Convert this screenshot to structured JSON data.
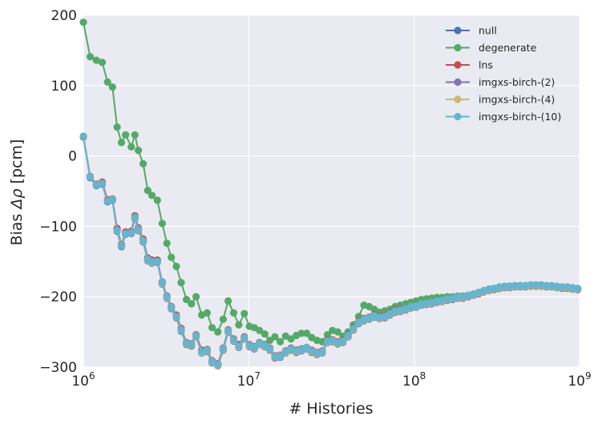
{
  "chart_data": {
    "type": "line",
    "xlabel": "# Histories",
    "ylabel_prefix": "Bias ",
    "ylabel_symbol": "Δρ",
    "ylabel_suffix": " [pcm]",
    "x_scale": "log",
    "xlim": [
      1000000,
      1000000000
    ],
    "ylim": [
      -300,
      200
    ],
    "grid": true,
    "legend_position": "top-right",
    "x_ticks": [
      {
        "value": 1000000,
        "base": "10",
        "exp": "6"
      },
      {
        "value": 10000000,
        "base": "10",
        "exp": "7"
      },
      {
        "value": 100000000,
        "base": "10",
        "exp": "8"
      },
      {
        "value": 1000000000,
        "base": "10",
        "exp": "9"
      }
    ],
    "y_ticks": [
      {
        "value": 200,
        "label": "200"
      },
      {
        "value": 100,
        "label": "100"
      },
      {
        "value": 0,
        "label": "0"
      },
      {
        "value": -100,
        "label": "−100"
      },
      {
        "value": -200,
        "label": "−200"
      },
      {
        "value": -300,
        "label": "−300"
      }
    ],
    "x": [
      1000000,
      1100000,
      1200000,
      1300000,
      1400000,
      1500000,
      1600000,
      1700000,
      1800000,
      1950000,
      2050000,
      2150000,
      2300000,
      2450000,
      2600000,
      2800000,
      3000000,
      3200000,
      3400000,
      3650000,
      3900000,
      4200000,
      4500000,
      4800000,
      5200000,
      5600000,
      6000000,
      6500000,
      7000000,
      7500000,
      8100000,
      8700000,
      9400000,
      10100000,
      10800000,
      11600000,
      12500000,
      13400000,
      14400000,
      15500000,
      16700000,
      18000000,
      19400000,
      20800000,
      22400000,
      24000000,
      25800000,
      27800000,
      29900000,
      32100000,
      34500000,
      37100000,
      39900000,
      42900000,
      46200000,
      49700000,
      53400000,
      57400000,
      61700000,
      66400000,
      71400000,
      76800000,
      82600000,
      88800000,
      95500000,
      102700000,
      110400000,
      118700000,
      127600000,
      137200000,
      147500000,
      158600000,
      170600000,
      183500000,
      197300000,
      212200000,
      228200000,
      245300000,
      263800000,
      283700000,
      305100000,
      328000000,
      352700000,
      379300000,
      407900000,
      438600000,
      471600000,
      507100000,
      545300000,
      586400000,
      630600000,
      678100000,
      729100000,
      784100000,
      843100000,
      906700000,
      975000000
    ],
    "series": [
      {
        "name": "null",
        "color": "#4c72b0",
        "values": [
          27,
          -31,
          -42,
          -40,
          -65,
          -63,
          -107,
          -129,
          -111,
          -110,
          -89,
          -106,
          -122,
          -149,
          -152,
          -151,
          -182,
          -202,
          -217,
          -230,
          -249,
          -268,
          -270,
          -257,
          -280,
          -278,
          -294,
          -298,
          -276,
          -250,
          -263,
          -272,
          -260,
          -271,
          -274,
          -268,
          -271,
          -276,
          -287,
          -286,
          -280,
          -276,
          -279,
          -277,
          -274,
          -279,
          -282,
          -280,
          -265,
          -264,
          -267,
          -265,
          -257,
          -247,
          -238,
          -234,
          -232,
          -229,
          -231,
          -230,
          -226,
          -222,
          -221,
          -219,
          -216,
          -215,
          -212,
          -211,
          -210,
          -208,
          -207,
          -205,
          -204,
          -202,
          -202,
          -200,
          -198,
          -196,
          -193,
          -191,
          -190,
          -188,
          -187,
          -187,
          -186,
          -186,
          -186,
          -185,
          -185,
          -185,
          -186,
          -186,
          -187,
          -188,
          -188,
          -189,
          -190
        ]
      },
      {
        "name": "degenerate",
        "color": "#55a868",
        "values": [
          190,
          141,
          136,
          133,
          105,
          98,
          41,
          19,
          30,
          13,
          30,
          8,
          -11,
          -49,
          -56,
          -63,
          -96,
          -124,
          -144,
          -157,
          -180,
          -204,
          -210,
          -200,
          -226,
          -223,
          -244,
          -250,
          -232,
          -206,
          -223,
          -240,
          -224,
          -242,
          -244,
          -248,
          -253,
          -262,
          -257,
          -264,
          -256,
          -260,
          -255,
          -252,
          -252,
          -258,
          -262,
          -264,
          -254,
          -248,
          -250,
          -256,
          -250,
          -240,
          -228,
          -212,
          -214,
          -218,
          -222,
          -220,
          -218,
          -214,
          -212,
          -210,
          -208,
          -206,
          -204,
          -203,
          -202,
          -201,
          -201,
          -200,
          -200,
          -199,
          -199,
          -198,
          -196,
          -194,
          -192,
          -190,
          -188,
          -187,
          -186,
          -185,
          -185,
          -184,
          -184,
          -184,
          -184,
          -185,
          -185,
          -186,
          -187,
          -187,
          -187,
          -188,
          -189
        ]
      },
      {
        "name": "lns",
        "color": "#c44e52",
        "values": [
          27,
          -29,
          -40,
          -37,
          -62,
          -61,
          -103,
          -126,
          -108,
          -107,
          -85,
          -102,
          -118,
          -145,
          -148,
          -148,
          -179,
          -199,
          -214,
          -226,
          -245,
          -265,
          -267,
          -254,
          -276,
          -275,
          -291,
          -295,
          -273,
          -247,
          -260,
          -268,
          -257,
          -268,
          -271,
          -265,
          -268,
          -273,
          -284,
          -283,
          -277,
          -273,
          -276,
          -274,
          -272,
          -276,
          -279,
          -277,
          -262,
          -261,
          -264,
          -262,
          -254,
          -244,
          -235,
          -231,
          -229,
          -226,
          -228,
          -227,
          -223,
          -219,
          -218,
          -217,
          -214,
          -213,
          -210,
          -209,
          -208,
          -206,
          -205,
          -203,
          -202,
          -201,
          -200,
          -199,
          -197,
          -195,
          -192,
          -190,
          -189,
          -187,
          -186,
          -186,
          -185,
          -185,
          -185,
          -184,
          -184,
          -184,
          -185,
          -185,
          -186,
          -187,
          -187,
          -188,
          -189
        ]
      },
      {
        "name": "imgxs-birch-(2)",
        "color": "#8172b2",
        "values": [
          28,
          -30,
          -41,
          -39,
          -64,
          -62,
          -106,
          -128,
          -110,
          -109,
          -88,
          -105,
          -121,
          -148,
          -151,
          -150,
          -181,
          -201,
          -216,
          -229,
          -248,
          -267,
          -269,
          -256,
          -279,
          -277,
          -293,
          -297,
          -275,
          -249,
          -262,
          -271,
          -259,
          -270,
          -273,
          -267,
          -270,
          -275,
          -286,
          -285,
          -279,
          -275,
          -278,
          -276,
          -273,
          -278,
          -281,
          -279,
          -264,
          -263,
          -266,
          -264,
          -256,
          -246,
          -237,
          -233,
          -231,
          -228,
          -230,
          -229,
          -225,
          -221,
          -220,
          -218,
          -215,
          -214,
          -211,
          -210,
          -209,
          -207,
          -206,
          -204,
          -203,
          -201,
          -201,
          -199,
          -197,
          -195,
          -192,
          -190,
          -189,
          -187,
          -186,
          -186,
          -185,
          -185,
          -185,
          -184,
          -184,
          -184,
          -185,
          -185,
          -186,
          -187,
          -187,
          -188,
          -189
        ]
      },
      {
        "name": "imgxs-birch-(4)",
        "color": "#ccb974",
        "values": [
          28,
          -30,
          -41,
          -39,
          -64,
          -62,
          -106,
          -128,
          -110,
          -109,
          -88,
          -105,
          -121,
          -148,
          -151,
          -150,
          -181,
          -201,
          -216,
          -229,
          -248,
          -267,
          -269,
          -256,
          -279,
          -277,
          -293,
          -297,
          -275,
          -249,
          -262,
          -271,
          -259,
          -270,
          -273,
          -267,
          -270,
          -275,
          -286,
          -285,
          -279,
          -275,
          -278,
          -276,
          -273,
          -278,
          -281,
          -279,
          -264,
          -263,
          -266,
          -264,
          -256,
          -246,
          -237,
          -233,
          -231,
          -228,
          -230,
          -229,
          -225,
          -221,
          -220,
          -218,
          -215,
          -214,
          -211,
          -210,
          -209,
          -207,
          -206,
          -204,
          -203,
          -201,
          -201,
          -199,
          -197,
          -195,
          -192,
          -190,
          -189,
          -187,
          -186,
          -186,
          -185,
          -185,
          -185,
          -184,
          -184,
          -184,
          -185,
          -185,
          -186,
          -187,
          -187,
          -188,
          -189
        ]
      },
      {
        "name": "imgxs-birch-(10)",
        "color": "#64b5cd",
        "values": [
          28,
          -30,
          -41,
          -39,
          -64,
          -62,
          -106,
          -128,
          -110,
          -109,
          -87,
          -104,
          -120,
          -147,
          -150,
          -150,
          -180,
          -200,
          -215,
          -228,
          -247,
          -266,
          -268,
          -255,
          -278,
          -276,
          -292,
          -296,
          -274,
          -248,
          -261,
          -270,
          -258,
          -269,
          -272,
          -266,
          -269,
          -274,
          -285,
          -284,
          -278,
          -274,
          -277,
          -275,
          -272,
          -277,
          -280,
          -278,
          -263,
          -262,
          -265,
          -263,
          -255,
          -245,
          -236,
          -232,
          -230,
          -227,
          -229,
          -228,
          -224,
          -220,
          -219,
          -217,
          -214,
          -213,
          -210,
          -209,
          -208,
          -206,
          -205,
          -203,
          -202,
          -200,
          -200,
          -198,
          -196,
          -194,
          -191,
          -189,
          -188,
          -186,
          -185,
          -185,
          -184,
          -184,
          -184,
          -183,
          -183,
          -183,
          -184,
          -184,
          -185,
          -186,
          -186,
          -187,
          -188
        ]
      }
    ]
  }
}
